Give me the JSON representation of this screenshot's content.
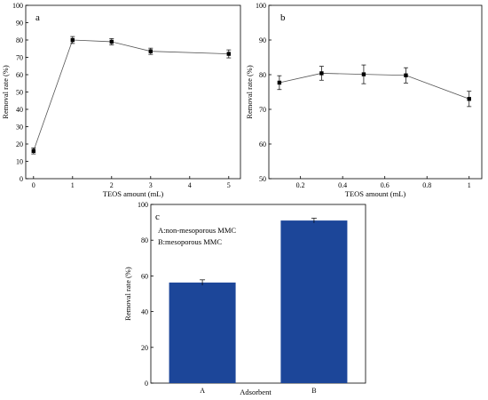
{
  "chart_data": [
    {
      "panel": "a",
      "type": "line",
      "xlabel": "TEOS amount (mL)",
      "ylabel": "Removal rate (%)",
      "xlim": [
        -0.2,
        5.3
      ],
      "ylim": [
        0,
        100
      ],
      "xticks": [
        0,
        1,
        2,
        3,
        4,
        5
      ],
      "yticks": [
        0,
        10,
        20,
        30,
        40,
        50,
        60,
        70,
        80,
        90,
        100
      ],
      "marker": "square",
      "color": "#000000",
      "x": [
        0,
        1,
        2,
        3,
        5
      ],
      "y": [
        16,
        80,
        79,
        73.5,
        72
      ],
      "err": [
        1.7,
        2.0,
        1.8,
        1.8,
        2.3
      ]
    },
    {
      "panel": "b",
      "type": "line",
      "xlabel": "TEOS amount (mL)",
      "ylabel": "Removal rate (%)",
      "xlim": [
        0.05,
        1.06
      ],
      "ylim": [
        50,
        100
      ],
      "xticks": [
        0.2,
        0.4,
        0.6,
        0.8,
        1
      ],
      "yticks": [
        50,
        60,
        70,
        80,
        90,
        100
      ],
      "marker": "square",
      "color": "#000000",
      "x": [
        0.1,
        0.3,
        0.5,
        0.7,
        1
      ],
      "y": [
        77.7,
        80.4,
        80.1,
        79.8,
        73.0
      ],
      "err": [
        2.0,
        2.0,
        2.7,
        2.2,
        2.2
      ]
    },
    {
      "panel": "c",
      "type": "bar",
      "xlabel": "Adsorbent",
      "ylabel": "Removal rate (%)",
      "ylim": [
        0,
        100
      ],
      "yticks": [
        0,
        20,
        40,
        60,
        80,
        100
      ],
      "categories": [
        "A",
        "B"
      ],
      "values": [
        56.3,
        91
      ],
      "err": [
        1.5,
        1.3
      ],
      "color": "#1c4699",
      "legend_lines": [
        "A:non-mesoporous MMC",
        "B:mesoporous MMC"
      ]
    }
  ]
}
